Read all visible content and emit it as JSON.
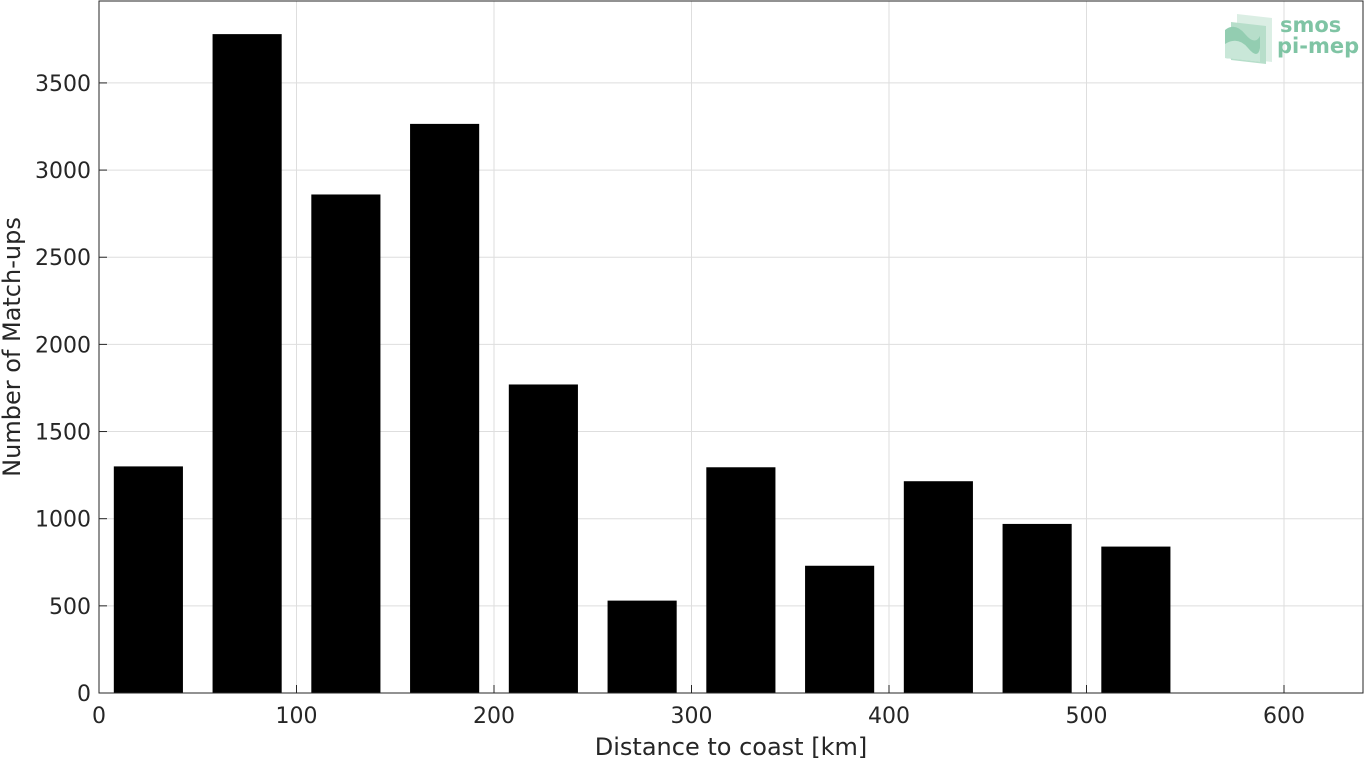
{
  "chart_data": {
    "type": "bar",
    "title": "",
    "xlabel": "Distance to coast [km]",
    "ylabel": "Number of Match-ups",
    "x": [
      25,
      75,
      125,
      175,
      225,
      275,
      325,
      375,
      425,
      475,
      525
    ],
    "values": [
      1300,
      3780,
      2860,
      3265,
      1770,
      530,
      1295,
      730,
      1215,
      970,
      840
    ],
    "bar_width": 35,
    "xlim": [
      0,
      640
    ],
    "ylim": [
      0,
      3970
    ],
    "xticks": [
      0,
      100,
      200,
      300,
      400,
      500,
      600
    ],
    "yticks": [
      0,
      500,
      1000,
      1500,
      2000,
      2500,
      3000,
      3500
    ],
    "grid": true,
    "legend": "none",
    "bar_color": "#000000",
    "grid_color": "#dedede"
  },
  "logo": {
    "line1": "smos",
    "line2": "pi-mep",
    "color": "#7fc4a4"
  }
}
